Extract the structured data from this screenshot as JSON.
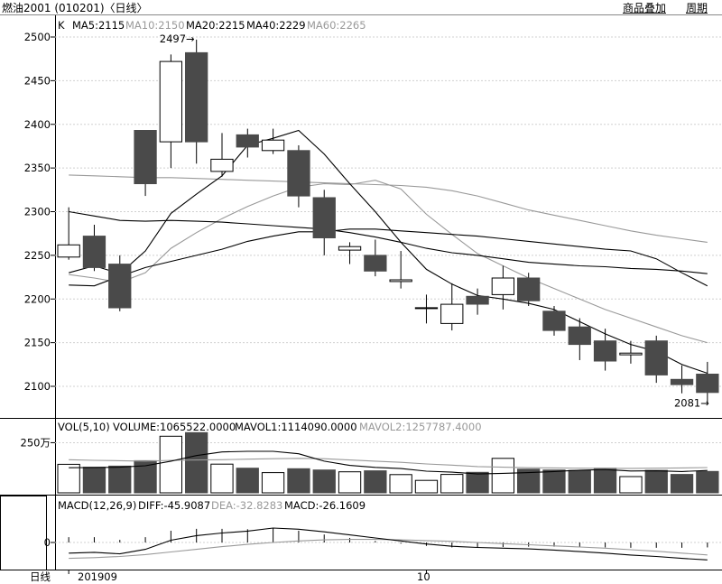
{
  "header": {
    "title": "燃油2001 (010201)〈日线〉",
    "overlay_button": "商品叠加",
    "period_button": "周期"
  },
  "main_panel": {
    "label": "K",
    "ma5": "MA5:2115",
    "ma10": "MA10:2150",
    "ma20": "MA20:2215",
    "ma40": "MA40:2229",
    "ma60": "MA60:2265",
    "high_marker": "2497→",
    "low_marker": "2081→",
    "colors": {
      "up": "#ffffff",
      "down": "#4a4a4a",
      "outline": "#000000",
      "ma_dark": "#000000",
      "ma_light": "#999999"
    }
  },
  "volume_panel": {
    "label": "VOL(5,10)",
    "volume": "VOLUME:1065522.0000",
    "mavol1": "MAVOL1:1114090.0000",
    "mavol2": "MAVOL2:1257787.4000",
    "tick_label": "250万"
  },
  "macd_panel": {
    "label": "MACD(12,26,9)",
    "diff": "DIFF:-45.9087",
    "dea": "DEA:-32.8283",
    "macd": "MACD:-26.1609",
    "tick_label": "0"
  },
  "footer": {
    "period_label": "日线",
    "date_start": "201909",
    "date_mid": "10"
  },
  "chart_data": {
    "type": "candlestick",
    "price_ticks": [
      2100,
      2150,
      2200,
      2250,
      2300,
      2350,
      2400,
      2450,
      2500
    ],
    "price_range": [
      2072,
      2508
    ],
    "candles": [
      {
        "o": 2248,
        "c": 2262,
        "h": 2305,
        "l": 2245
      },
      {
        "o": 2272,
        "c": 2236,
        "h": 2285,
        "l": 2232
      },
      {
        "o": 2240,
        "c": 2190,
        "h": 2250,
        "l": 2186
      },
      {
        "o": 2393,
        "c": 2332,
        "h": 2393,
        "l": 2318
      },
      {
        "o": 2380,
        "c": 2472,
        "h": 2480,
        "l": 2350
      },
      {
        "o": 2482,
        "c": 2380,
        "h": 2497,
        "l": 2355
      },
      {
        "o": 2346,
        "c": 2360,
        "h": 2390,
        "l": 2340
      },
      {
        "o": 2388,
        "c": 2374,
        "h": 2395,
        "l": 2362
      },
      {
        "o": 2370,
        "c": 2382,
        "h": 2395,
        "l": 2366
      },
      {
        "o": 2370,
        "c": 2318,
        "h": 2376,
        "l": 2305
      },
      {
        "o": 2316,
        "c": 2270,
        "h": 2325,
        "l": 2250
      },
      {
        "o": 2256,
        "c": 2260,
        "h": 2265,
        "l": 2240
      },
      {
        "o": 2250,
        "c": 2232,
        "h": 2268,
        "l": 2226
      },
      {
        "o": 2220,
        "c": 2222,
        "h": 2255,
        "l": 2212
      },
      {
        "o": 2190,
        "c": 2190,
        "h": 2205,
        "l": 2172
      },
      {
        "o": 2172,
        "c": 2194,
        "h": 2218,
        "l": 2164
      },
      {
        "o": 2203,
        "c": 2194,
        "h": 2212,
        "l": 2182
      },
      {
        "o": 2205,
        "c": 2224,
        "h": 2238,
        "l": 2188
      },
      {
        "o": 2224,
        "c": 2198,
        "h": 2230,
        "l": 2192
      },
      {
        "o": 2186,
        "c": 2164,
        "h": 2192,
        "l": 2158
      },
      {
        "o": 2168,
        "c": 2148,
        "h": 2178,
        "l": 2130
      },
      {
        "o": 2152,
        "c": 2129,
        "h": 2166,
        "l": 2118
      },
      {
        "o": 2136,
        "c": 2138,
        "h": 2152,
        "l": 2126
      },
      {
        "o": 2152,
        "c": 2113,
        "h": 2158,
        "l": 2104
      },
      {
        "o": 2108,
        "c": 2102,
        "h": 2124,
        "l": 2092
      },
      {
        "o": 2114,
        "c": 2093,
        "h": 2128,
        "l": 2081
      }
    ],
    "ma5": [
      2230,
      2238,
      2229,
      2255,
      2298,
      2320,
      2341,
      2376,
      2384,
      2393,
      2366,
      2332,
      2300,
      2265,
      2234,
      2217,
      2204,
      2200,
      2195,
      2188,
      2174,
      2160,
      2148,
      2140,
      2125,
      2115
    ],
    "ma10": [
      2228,
      2224,
      2219,
      2230,
      2258,
      2276,
      2292,
      2306,
      2318,
      2328,
      2332,
      2331,
      2336,
      2326,
      2297,
      2274,
      2252,
      2238,
      2224,
      2212,
      2200,
      2188,
      2178,
      2168,
      2158,
      2150
    ],
    "ma20": [
      2216,
      2215,
      2226,
      2236,
      2243,
      2250,
      2257,
      2266,
      2272,
      2277,
      2277,
      2280,
      2280,
      2278,
      2276,
      2274,
      2272,
      2269,
      2266,
      2263,
      2260,
      2257,
      2255,
      2246,
      2230,
      2215
    ],
    "ma40": [
      2300,
      2295,
      2290,
      2289,
      2290,
      2289,
      2288,
      2286,
      2284,
      2282,
      2280,
      2276,
      2271,
      2265,
      2258,
      2253,
      2250,
      2246,
      2242,
      2240,
      2238,
      2237,
      2235,
      2234,
      2232,
      2229
    ],
    "ma60": [
      2342,
      2341,
      2340,
      2339,
      2339,
      2338,
      2337,
      2336,
      2335,
      2334,
      2333,
      2332,
      2331,
      2330,
      2328,
      2324,
      2318,
      2310,
      2302,
      2296,
      2290,
      2284,
      2278,
      2273,
      2269,
      2265
    ],
    "volume": [
      1420000,
      1280000,
      1330000,
      1600000,
      2820000,
      3000000,
      1430000,
      1230000,
      1010000,
      1200000,
      1140000,
      1050000,
      1100000,
      910000,
      620000,
      920000,
      1020000,
      1720000,
      1180000,
      1140000,
      1120000,
      1230000,
      810000,
      1120000,
      920000,
      1065522
    ],
    "vol_ma5": [
      1250000,
      1260000,
      1280000,
      1350000,
      1580000,
      1860000,
      2040000,
      2070000,
      2070000,
      1950000,
      1580000,
      1370000,
      1270000,
      1210000,
      1080000,
      1030000,
      940000,
      970000,
      1010000,
      1060000,
      1130000,
      1160000,
      1090000,
      1100000,
      1060000,
      1114090
    ],
    "vol_ma10": [
      1650000,
      1620000,
      1600000,
      1580000,
      1620000,
      1640000,
      1650000,
      1680000,
      1700000,
      1720000,
      1700000,
      1640000,
      1580000,
      1520000,
      1440000,
      1380000,
      1310000,
      1280000,
      1250000,
      1240000,
      1230000,
      1220000,
      1220000,
      1230000,
      1240000,
      1257787
    ],
    "macd_diff": [
      -28,
      -26,
      -30,
      -18,
      6,
      18,
      25,
      30,
      38,
      35,
      28,
      20,
      12,
      4,
      -4,
      -10,
      -13,
      -15,
      -17,
      -20,
      -24,
      -28,
      -33,
      -37,
      -42,
      -45.9
    ],
    "macd_dea": [
      -42,
      -40,
      -37,
      -32,
      -25,
      -18,
      -11,
      -5,
      0,
      4,
      7,
      8,
      8,
      7,
      5,
      3,
      0,
      -3,
      -6,
      -9,
      -12,
      -15,
      -19,
      -23,
      -28,
      -32.8
    ],
    "macd_bar": [
      28,
      28,
      14,
      28,
      62,
      72,
      72,
      70,
      76,
      62,
      42,
      24,
      8,
      -6,
      -18,
      -26,
      -26,
      -24,
      -22,
      -22,
      -24,
      -26,
      -28,
      -28,
      -28,
      -26
    ]
  }
}
